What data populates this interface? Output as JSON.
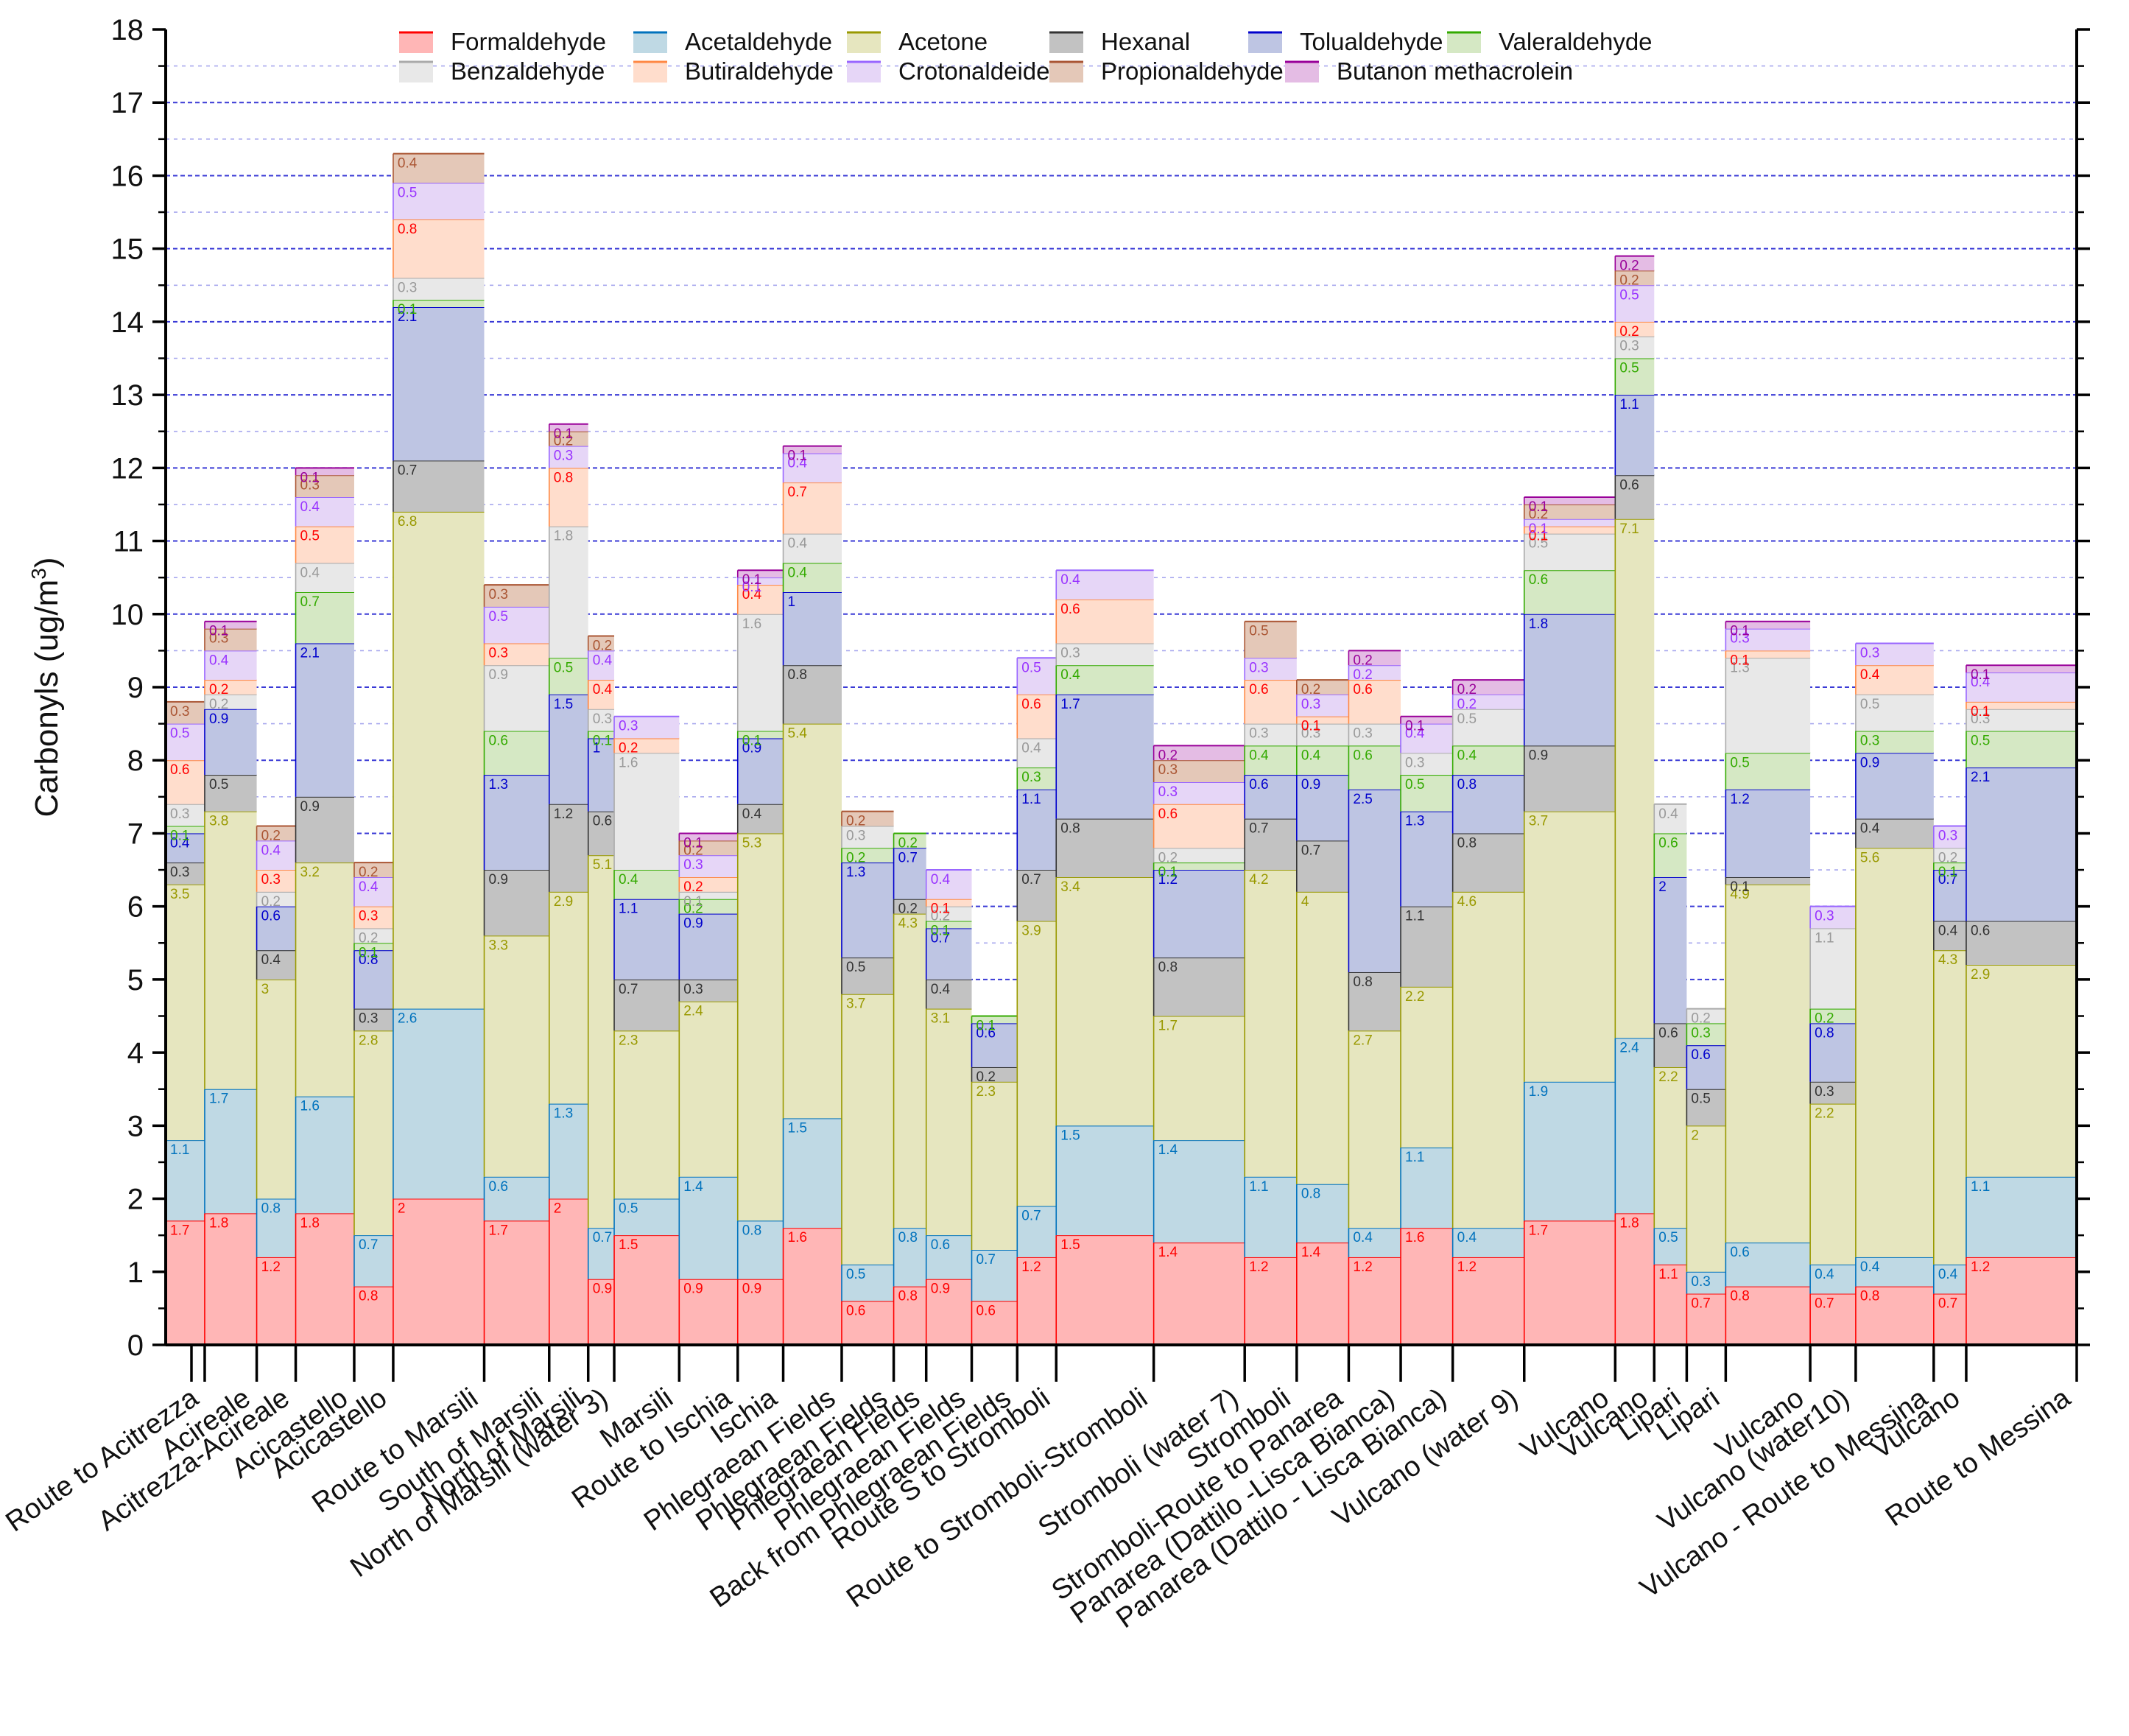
{
  "chart_data": {
    "type": "bar",
    "subtype": "stacked-variable-width",
    "ylabel": "Carbonyls (ug/m",
    "ylabel_superscript": "3",
    "ylabel_close": ")",
    "ylim": [
      0,
      18
    ],
    "yticks": [
      0,
      1,
      2,
      3,
      4,
      5,
      6,
      7,
      8,
      9,
      10,
      11,
      12,
      13,
      14,
      15,
      16,
      17,
      18
    ],
    "grid": true,
    "legend_position": "top",
    "categories": [
      "Route to Acitrezza",
      "Acireale",
      "Acitrezza-Acireale",
      "Acicastello",
      "Acicastello",
      "Route to Marsili",
      "South of Marsili",
      "North of Marsili",
      "North of Marsili (water 3)",
      "Marsili",
      "Route to Ischia",
      "Ischia",
      "Phlegraean Fields",
      "Phlegraean Fields",
      "Phlegraean Fields",
      "Phlegraean Fields",
      "Back from Phlegraean Fields",
      "Route S to Stromboli",
      "Route to Stromboli-Stromboli",
      "Stromboli (water 7)",
      "Stromboli",
      "Stromboli-Route to Panarea",
      "Panarea (Dattilo -Lisca Bianca)",
      "Panarea (Dattilo - Lisca Bianca)",
      "Vulcano (water 9)",
      "Vulcano",
      "Vulcano",
      "Lipari",
      "Lipari",
      "Vulcano",
      "Vulcano (water10)",
      "Vulcano - Route to Messina",
      "Vulcano",
      "Route to Messina"
    ],
    "interval_boundaries": [
      0,
      0.6,
      1.4,
      2.0,
      2.9,
      3.5,
      4.9,
      5.9,
      6.5,
      6.9,
      7.9,
      8.8,
      9.5,
      10.4,
      11.2,
      11.7,
      12.4,
      13.1,
      13.7,
      15.2,
      16.6,
      17.4,
      18.2,
      19.0,
      19.8,
      20.9,
      22.3,
      22.9,
      23.4,
      24.0,
      25.3,
      26.0,
      27.2,
      27.7,
      29.4
    ],
    "series": [
      {
        "name": "Formaldehyde",
        "color": "#ffb6b6",
        "edge": "#ff0000",
        "label_color": "#ff0000",
        "values": [
          1.7,
          1.8,
          1.2,
          1.8,
          0.8,
          2,
          1.7,
          2,
          0.9,
          1.5,
          0.9,
          0.9,
          1.6,
          0.6,
          0.8,
          0.9,
          0.6,
          1.2,
          1.5,
          1.4,
          1.2,
          1.4,
          1.2,
          1.6,
          1.2,
          1.7,
          1.8,
          1.1,
          0.7,
          0.8,
          0.7,
          0.8,
          0.7,
          1.2
        ]
      },
      {
        "name": "Acetaldehyde",
        "color": "#bfd9e4",
        "edge": "#0072bd",
        "label_color": "#0072bd",
        "values": [
          1.1,
          1.7,
          0.8,
          1.6,
          0.7,
          2.6,
          0.6,
          1.3,
          0.7,
          0.5,
          1.4,
          0.8,
          1.5,
          0.5,
          0.8,
          0.6,
          0.7,
          0.7,
          1.5,
          1.4,
          1.1,
          0.8,
          0.4,
          1.1,
          0.4,
          1.9,
          2.4,
          0.5,
          0.3,
          0.6,
          0.4,
          0.4,
          0.4,
          1.1
        ]
      },
      {
        "name": "Acetone",
        "color": "#e6e6bf",
        "edge": "#999900",
        "label_color": "#999900",
        "values": [
          3.5,
          3.8,
          3,
          3.2,
          2.8,
          6.8,
          3.3,
          2.9,
          5.1,
          2.3,
          2.4,
          5.3,
          5.4,
          3.7,
          4.3,
          3.1,
          2.3,
          3.9,
          3.4,
          1.7,
          4.2,
          4,
          2.7,
          2.2,
          4.6,
          3.7,
          7.1,
          2.2,
          2,
          4.9,
          2.2,
          5.6,
          4.3,
          2.9
        ]
      },
      {
        "name": "Hexanal",
        "color": "#c2c2c2",
        "edge": "#333333",
        "label_color": "#333333",
        "values": [
          0.3,
          0.5,
          0.4,
          0.9,
          0.3,
          0.7,
          0.9,
          1.2,
          0.6,
          0.7,
          0.3,
          0.4,
          0.8,
          0.5,
          0.2,
          0.4,
          0.2,
          0.7,
          0.8,
          0.8,
          0.7,
          0.7,
          0.8,
          1.1,
          0.8,
          0.9,
          0.6,
          0.6,
          0.5,
          0.1,
          0.3,
          0.4,
          0.4,
          0.6
        ]
      },
      {
        "name": "Tolualdehyde",
        "color": "#bec5e3",
        "edge": "#0000cc",
        "label_color": "#0000cc",
        "values": [
          0.4,
          0.9,
          0.6,
          2.1,
          0.8,
          2.1,
          1.3,
          1.5,
          1,
          1.1,
          0.9,
          0.9,
          1,
          1.3,
          0.7,
          0.7,
          0.6,
          1.1,
          1.7,
          1.2,
          0.6,
          0.9,
          2.5,
          1.3,
          0.8,
          1.8,
          1.1,
          2,
          0.6,
          1.2,
          0.8,
          0.9,
          0.7,
          2.1
        ]
      },
      {
        "name": "Valeraldehyde",
        "color": "#d5e8c4",
        "edge": "#33aa00",
        "label_color": "#33aa00",
        "values": [
          0.1,
          0.0,
          0.0,
          0.7,
          0.1,
          0.1,
          0.6,
          0.5,
          0.1,
          0.4,
          0.2,
          0.1,
          0.4,
          0.2,
          0.2,
          0.1,
          0.1,
          0.3,
          0.4,
          0.1,
          0.4,
          0.4,
          0.6,
          0.5,
          0.4,
          0.6,
          0.5,
          0.6,
          0.3,
          0.5,
          0.2,
          0.3,
          0.1,
          0.5
        ]
      },
      {
        "name": "Benzaldehyde",
        "color": "#e8e8e8",
        "edge": "#aaaaaa",
        "label_color": "#999999",
        "values": [
          0.3,
          0.2,
          0.2,
          0.4,
          0.2,
          0.3,
          0.9,
          1.8,
          0.3,
          1.6,
          0.1,
          1.6,
          0.4,
          0.3,
          0.0,
          0.2,
          0.0,
          0.4,
          0.3,
          0.2,
          0.3,
          0.3,
          0.3,
          0.3,
          0.5,
          0.5,
          0.3,
          0.4,
          0.2,
          1.3,
          1.1,
          0.5,
          0.2,
          0.3
        ]
      },
      {
        "name": "Butiraldehyde",
        "color": "#ffddcc",
        "edge": "#ff8844",
        "label_color": "#ff0000",
        "values": [
          0.6,
          0.2,
          0.3,
          0.5,
          0.3,
          0.8,
          0.3,
          0.8,
          0.4,
          0.2,
          0.2,
          0.4,
          0.7,
          0.0,
          0.0,
          0.1,
          0.0,
          0.6,
          0.6,
          0.6,
          0.6,
          0.1,
          0.6,
          0.0,
          0.0,
          0.1,
          0.2,
          0.0,
          0.0,
          0.1,
          0.0,
          0.4,
          0.0,
          0.1
        ]
      },
      {
        "name": "Crotonaldeide",
        "color": "#e6d6f7",
        "edge": "#9966ff",
        "label_color": "#9933ff",
        "values": [
          0.5,
          0.4,
          0.4,
          0.4,
          0.4,
          0.5,
          0.5,
          0.3,
          0.4,
          0.3,
          0.3,
          0.1,
          0.4,
          0.0,
          0.0,
          0.4,
          0.0,
          0.5,
          0.4,
          0.3,
          0.3,
          0.3,
          0.2,
          0.4,
          0.2,
          0.1,
          0.5,
          0.0,
          0.0,
          0.3,
          0.3,
          0.3,
          0.3,
          0.4
        ]
      },
      {
        "name": "Propionaldehyde",
        "color": "#e4c8b8",
        "edge": "#aa5533",
        "label_color": "#aa5533",
        "values": [
          0.3,
          0.3,
          0.2,
          0.3,
          0.2,
          0.4,
          0.3,
          0.2,
          0.2,
          0.0,
          0.2,
          0.0,
          0.0,
          0.2,
          0.0,
          0.0,
          0.0,
          0.0,
          0.0,
          0.3,
          0.5,
          0.2,
          0.0,
          0.0,
          0.0,
          0.2,
          0.2,
          0.0,
          0.0,
          0.0,
          0.0,
          0.0,
          0.0,
          0.0
        ]
      },
      {
        "name": "Butanon methacrolein",
        "color": "#e4bce4",
        "edge": "#990099",
        "label_color": "#990099",
        "values": [
          0.0,
          0.1,
          0.0,
          0.1,
          0.0,
          0.0,
          0.0,
          0.1,
          0.0,
          0.0,
          0.1,
          0.1,
          0.1,
          0.0,
          0.0,
          0.0,
          0.0,
          0.0,
          0.0,
          0.2,
          0.0,
          0.0,
          0.2,
          0.1,
          0.2,
          0.1,
          0.2,
          0.0,
          0.0,
          0.1,
          0.0,
          0.0,
          0.0,
          0.1
        ]
      }
    ]
  }
}
